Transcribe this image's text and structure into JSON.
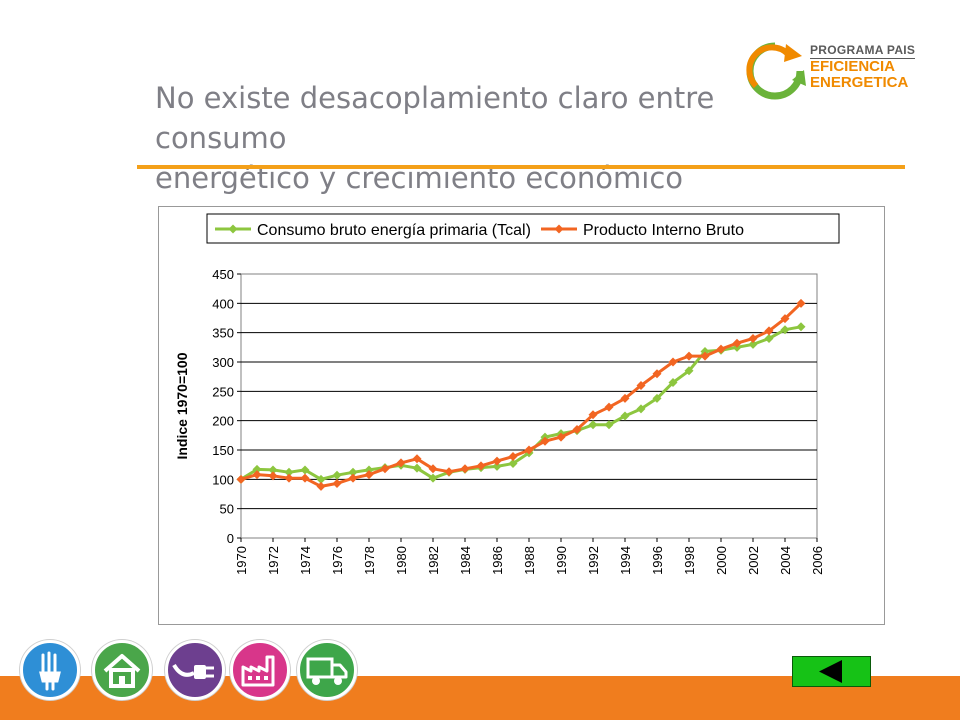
{
  "title": {
    "line1": "No existe desacoplamiento claro entre consumo",
    "line2": "energético y crecimiento económico"
  },
  "logo": {
    "line1": "PROGRAMA PAIS",
    "line2": "EFICIENCIA",
    "line3": "ENERGETICA",
    "colors": {
      "orange": "#f08a00",
      "green": "#6bb33a",
      "grey": "#5a5a5a"
    }
  },
  "icons": [
    {
      "name": "light-bulb-icon",
      "color": "#2e8fd6"
    },
    {
      "name": "house-icon",
      "color": "#4aa64a"
    },
    {
      "name": "plug-icon",
      "color": "#6d3f8f"
    },
    {
      "name": "factory-icon",
      "color": "#d8368a"
    },
    {
      "name": "truck-icon",
      "color": "#3ea64a"
    }
  ],
  "nav": {
    "back_icon": "back-arrow-icon"
  },
  "chart_data": {
    "type": "line",
    "title": "",
    "xlabel": "",
    "ylabel": "Indice 1970=100",
    "ylim": [
      0,
      450
    ],
    "yticks": [
      0,
      50,
      100,
      150,
      200,
      250,
      300,
      350,
      400,
      450
    ],
    "xlim": [
      1970,
      2006
    ],
    "xticks": [
      "1970",
      "1972",
      "1974",
      "1976",
      "1978",
      "1980",
      "1982",
      "1984",
      "1986",
      "1988",
      "1990",
      "1992",
      "1994",
      "1996",
      "1998",
      "2000",
      "2002",
      "2004",
      "2006"
    ],
    "grid": "horizontal",
    "legend": "top",
    "x": [
      1970,
      1971,
      1972,
      1973,
      1974,
      1975,
      1976,
      1977,
      1978,
      1979,
      1980,
      1981,
      1982,
      1983,
      1984,
      1985,
      1986,
      1987,
      1988,
      1989,
      1990,
      1991,
      1992,
      1993,
      1994,
      1995,
      1996,
      1997,
      1998,
      1999,
      2000,
      2001,
      2002,
      2003,
      2004,
      2005
    ],
    "series": [
      {
        "name": "Consumo bruto energía primaria (Tcal)",
        "color": "#8dc63f",
        "values": [
          100,
          117,
          116,
          112,
          116,
          100,
          107,
          112,
          116,
          120,
          124,
          119,
          102,
          112,
          117,
          120,
          122,
          127,
          145,
          172,
          178,
          183,
          193,
          193,
          208,
          220,
          238,
          265,
          285,
          318,
          320,
          325,
          330,
          340,
          355,
          360
        ]
      },
      {
        "name": "Producto Interno Bruto",
        "color": "#f26522",
        "values": [
          100,
          108,
          106,
          102,
          102,
          88,
          93,
          102,
          108,
          118,
          128,
          135,
          118,
          113,
          118,
          123,
          131,
          139,
          150,
          165,
          172,
          185,
          210,
          223,
          238,
          260,
          280,
          300,
          310,
          310,
          322,
          332,
          340,
          353,
          374,
          400
        ]
      }
    ]
  }
}
